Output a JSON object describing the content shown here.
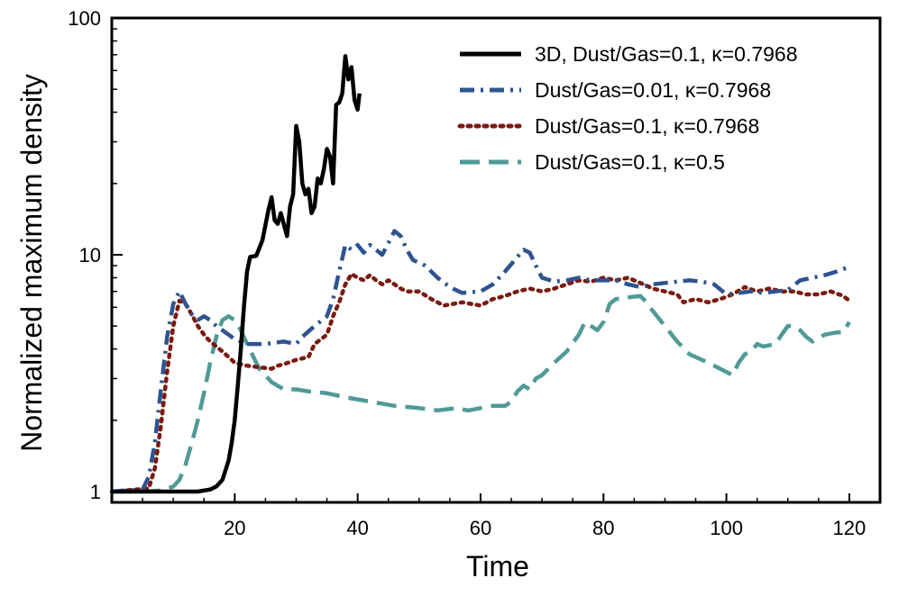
{
  "chart_data": {
    "type": "line",
    "title": "",
    "xlabel": "Time",
    "ylabel": "Normalized maximum density",
    "xlim": [
      0,
      125
    ],
    "ylim": [
      0.9,
      100
    ],
    "yscale": "log",
    "grid": false,
    "legend_position": "top-right",
    "x_ticks": [
      20,
      40,
      60,
      80,
      100,
      120
    ],
    "x_tick_labels": [
      "20",
      "40",
      "60",
      "80",
      "100",
      "120"
    ],
    "y_ticks": [
      1,
      10,
      100
    ],
    "y_tick_labels": [
      "1",
      "10",
      "100"
    ],
    "series": [
      {
        "name": "3D, Dust/Gas=0.1, κ=0.7968",
        "color": "#000000",
        "style": "solid",
        "points": [
          [
            0,
            1.0
          ],
          [
            5,
            1.0
          ],
          [
            10,
            1.0
          ],
          [
            14,
            1.0
          ],
          [
            16,
            1.02
          ],
          [
            17,
            1.05
          ],
          [
            18,
            1.12
          ],
          [
            19,
            1.35
          ],
          [
            19.5,
            1.6
          ],
          [
            20,
            2.0
          ],
          [
            20.5,
            2.8
          ],
          [
            21,
            4.0
          ],
          [
            21.5,
            6.0
          ],
          [
            22,
            8.5
          ],
          [
            22.5,
            9.8
          ],
          [
            23.5,
            9.9
          ],
          [
            24.5,
            11.5
          ],
          [
            25.5,
            15.5
          ],
          [
            26,
            17.5
          ],
          [
            26.5,
            14.0
          ],
          [
            27,
            13.5
          ],
          [
            27.5,
            15.0
          ],
          [
            28.5,
            12.0
          ],
          [
            29,
            16.0
          ],
          [
            29.5,
            18.0
          ],
          [
            30,
            35.0
          ],
          [
            30.5,
            30.0
          ],
          [
            31,
            20.0
          ],
          [
            31.5,
            18.0
          ],
          [
            32,
            19.0
          ],
          [
            32.5,
            15.0
          ],
          [
            33,
            16.0
          ],
          [
            33.5,
            21.0
          ],
          [
            34,
            20.0
          ],
          [
            34.5,
            23.0
          ],
          [
            35,
            28.0
          ],
          [
            35.5,
            26.0
          ],
          [
            36,
            20.0
          ],
          [
            36.5,
            43.0
          ],
          [
            37,
            44.0
          ],
          [
            37.5,
            48.0
          ],
          [
            38,
            69.0
          ],
          [
            38.5,
            55.0
          ],
          [
            39,
            62.0
          ],
          [
            39.5,
            45.0
          ],
          [
            40,
            41.0
          ],
          [
            40.3,
            48.0
          ]
        ]
      },
      {
        "name": "Dust/Gas=0.01, κ=0.7968",
        "color": "#2e5490",
        "style": "dashdot",
        "points": [
          [
            0,
            1.0
          ],
          [
            5,
            1.02
          ],
          [
            6,
            1.15
          ],
          [
            7,
            1.6
          ],
          [
            8,
            2.7
          ],
          [
            9,
            4.5
          ],
          [
            10,
            6.2
          ],
          [
            11,
            7.0
          ],
          [
            12,
            6.2
          ],
          [
            13,
            5.6
          ],
          [
            14,
            5.3
          ],
          [
            15,
            5.5
          ],
          [
            16,
            5.3
          ],
          [
            17,
            5.0
          ],
          [
            18,
            4.8
          ],
          [
            19,
            4.6
          ],
          [
            20,
            4.4
          ],
          [
            22,
            4.2
          ],
          [
            25,
            4.2
          ],
          [
            28,
            4.3
          ],
          [
            30,
            4.2
          ],
          [
            31,
            4.5
          ],
          [
            33,
            5.0
          ],
          [
            35,
            5.5
          ],
          [
            36,
            6.5
          ],
          [
            37,
            8.5
          ],
          [
            38,
            11.0
          ],
          [
            39,
            10.5
          ],
          [
            40,
            11.0
          ],
          [
            41,
            10.2
          ],
          [
            42,
            11.0
          ],
          [
            43,
            10.5
          ],
          [
            44,
            10.0
          ],
          [
            45,
            11.2
          ],
          [
            46,
            12.6
          ],
          [
            47,
            12.0
          ],
          [
            48,
            10.5
          ],
          [
            49,
            9.5
          ],
          [
            51,
            9.0
          ],
          [
            53,
            8.0
          ],
          [
            55,
            7.3
          ],
          [
            57,
            6.9
          ],
          [
            60,
            7.0
          ],
          [
            62,
            7.5
          ],
          [
            64,
            8.5
          ],
          [
            66,
            9.8
          ],
          [
            67,
            10.5
          ],
          [
            68,
            10.2
          ],
          [
            69,
            9.0
          ],
          [
            70,
            8.0
          ],
          [
            72,
            7.7
          ],
          [
            74,
            7.8
          ],
          [
            76,
            8.0
          ],
          [
            78,
            7.8
          ],
          [
            80,
            7.8
          ],
          [
            82,
            7.8
          ],
          [
            84,
            7.5
          ],
          [
            86,
            7.3
          ],
          [
            88,
            7.5
          ],
          [
            90,
            7.6
          ],
          [
            92,
            7.7
          ],
          [
            94,
            7.8
          ],
          [
            96,
            7.7
          ],
          [
            98,
            7.5
          ],
          [
            100,
            6.8
          ],
          [
            102,
            6.9
          ],
          [
            104,
            7.0
          ],
          [
            106,
            6.9
          ],
          [
            108,
            7.0
          ],
          [
            110,
            7.1
          ],
          [
            112,
            7.8
          ],
          [
            114,
            8.0
          ],
          [
            116,
            8.2
          ],
          [
            118,
            8.5
          ],
          [
            120,
            8.9
          ]
        ]
      },
      {
        "name": "Dust/Gas=0.1, κ=0.7968",
        "color": "#7a1a10",
        "style": "dotted",
        "points": [
          [
            0,
            1.0
          ],
          [
            6,
            1.03
          ],
          [
            7,
            1.25
          ],
          [
            8,
            1.9
          ],
          [
            9,
            3.2
          ],
          [
            10,
            5.0
          ],
          [
            11,
            6.4
          ],
          [
            12,
            6.2
          ],
          [
            13,
            5.6
          ],
          [
            14,
            5.0
          ],
          [
            15,
            4.6
          ],
          [
            16,
            4.3
          ],
          [
            17,
            4.1
          ],
          [
            18,
            3.9
          ],
          [
            19,
            3.7
          ],
          [
            20,
            3.5
          ],
          [
            22,
            3.4
          ],
          [
            24,
            3.35
          ],
          [
            26,
            3.3
          ],
          [
            27,
            3.4
          ],
          [
            28,
            3.45
          ],
          [
            30,
            3.6
          ],
          [
            32,
            3.7
          ],
          [
            33,
            4.2
          ],
          [
            35,
            4.6
          ],
          [
            36,
            5.5
          ],
          [
            37,
            6.3
          ],
          [
            38,
            7.5
          ],
          [
            39,
            8.3
          ],
          [
            40,
            8.0
          ],
          [
            41,
            7.8
          ],
          [
            42,
            8.2
          ],
          [
            43,
            7.8
          ],
          [
            44,
            7.5
          ],
          [
            45,
            7.8
          ],
          [
            46,
            7.5
          ],
          [
            47,
            7.2
          ],
          [
            48,
            7.0
          ],
          [
            50,
            7.0
          ],
          [
            52,
            6.5
          ],
          [
            54,
            6.1
          ],
          [
            57,
            6.3
          ],
          [
            60,
            6.1
          ],
          [
            62,
            6.5
          ],
          [
            64,
            6.7
          ],
          [
            66,
            7.0
          ],
          [
            68,
            7.2
          ],
          [
            70,
            7.0
          ],
          [
            72,
            7.2
          ],
          [
            74,
            7.5
          ],
          [
            76,
            7.8
          ],
          [
            78,
            7.7
          ],
          [
            80,
            8.0
          ],
          [
            82,
            7.8
          ],
          [
            84,
            8.0
          ],
          [
            86,
            7.6
          ],
          [
            88,
            7.2
          ],
          [
            90,
            7.0
          ],
          [
            92,
            6.8
          ],
          [
            93,
            6.3
          ],
          [
            95,
            6.5
          ],
          [
            97,
            6.3
          ],
          [
            99,
            6.5
          ],
          [
            101,
            6.8
          ],
          [
            103,
            7.3
          ],
          [
            105,
            7.0
          ],
          [
            107,
            7.2
          ],
          [
            109,
            7.0
          ],
          [
            111,
            7.0
          ],
          [
            113,
            6.8
          ],
          [
            115,
            6.8
          ],
          [
            117,
            7.0
          ],
          [
            119,
            6.7
          ],
          [
            120,
            6.4
          ]
        ]
      },
      {
        "name": "Dust/Gas=0.1, κ=0.5",
        "color": "#4f9a96",
        "style": "dashed",
        "points": [
          [
            0,
            1.0
          ],
          [
            5,
            1.0
          ],
          [
            8,
            1.01
          ],
          [
            10,
            1.05
          ],
          [
            11,
            1.12
          ],
          [
            12,
            1.3
          ],
          [
            13,
            1.6
          ],
          [
            14,
            2.0
          ],
          [
            15,
            2.6
          ],
          [
            16,
            3.5
          ],
          [
            17,
            4.5
          ],
          [
            18,
            5.3
          ],
          [
            19,
            5.5
          ],
          [
            20,
            5.3
          ],
          [
            21,
            4.8
          ],
          [
            22,
            4.2
          ],
          [
            24,
            3.3
          ],
          [
            26,
            2.9
          ],
          [
            28,
            2.7
          ],
          [
            30,
            2.7
          ],
          [
            32,
            2.65
          ],
          [
            35,
            2.6
          ],
          [
            38,
            2.5
          ],
          [
            42,
            2.4
          ],
          [
            46,
            2.3
          ],
          [
            50,
            2.25
          ],
          [
            53,
            2.2
          ],
          [
            56,
            2.25
          ],
          [
            58,
            2.2
          ],
          [
            60,
            2.25
          ],
          [
            62,
            2.3
          ],
          [
            64,
            2.3
          ],
          [
            65,
            2.4
          ],
          [
            66,
            2.65
          ],
          [
            67,
            2.8
          ],
          [
            68,
            2.7
          ],
          [
            69,
            3.0
          ],
          [
            70,
            3.1
          ],
          [
            72,
            3.5
          ],
          [
            74,
            3.9
          ],
          [
            76,
            4.6
          ],
          [
            77,
            5.2
          ],
          [
            78,
            5.0
          ],
          [
            79,
            4.8
          ],
          [
            80,
            5.2
          ],
          [
            81,
            6.2
          ],
          [
            82,
            6.5
          ],
          [
            84,
            6.6
          ],
          [
            86,
            6.7
          ],
          [
            87,
            6.3
          ],
          [
            88,
            5.8
          ],
          [
            90,
            5.0
          ],
          [
            92,
            4.3
          ],
          [
            94,
            3.8
          ],
          [
            96,
            3.6
          ],
          [
            98,
            3.4
          ],
          [
            100,
            3.2
          ],
          [
            101,
            3.1
          ],
          [
            102,
            3.5
          ],
          [
            103,
            3.8
          ],
          [
            104,
            3.9
          ],
          [
            105,
            4.2
          ],
          [
            106,
            4.1
          ],
          [
            108,
            4.2
          ],
          [
            109,
            4.6
          ],
          [
            110,
            5.0
          ],
          [
            111,
            5.0
          ],
          [
            112,
            4.8
          ],
          [
            113,
            4.5
          ],
          [
            114,
            4.3
          ],
          [
            116,
            4.6
          ],
          [
            118,
            4.7
          ],
          [
            119,
            4.7
          ],
          [
            120,
            5.2
          ]
        ]
      }
    ]
  }
}
